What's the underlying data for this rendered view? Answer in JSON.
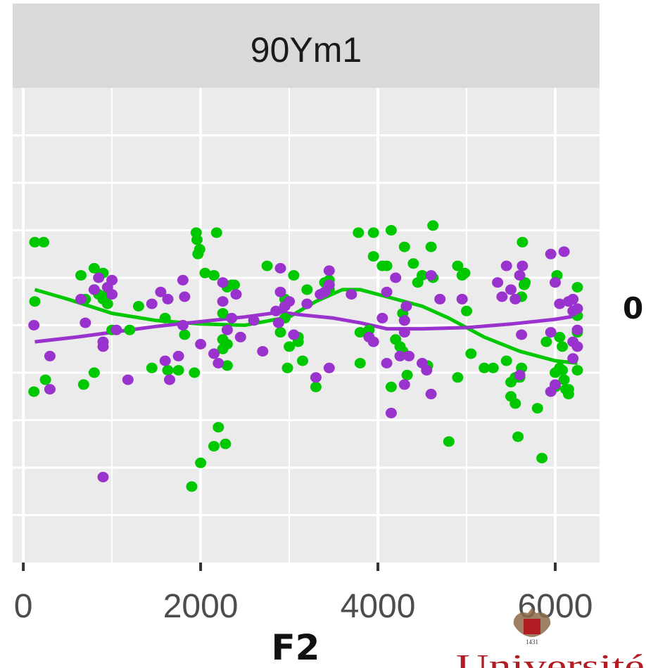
{
  "chart_data": {
    "type": "scatter",
    "panel_title": "90Ym1",
    "xlabel": "F2",
    "ylabel": "",
    "side_label": "0",
    "xlim": [
      -120,
      6500
    ],
    "ylim": [
      -10,
      10
    ],
    "x_ticks": [
      0,
      2000,
      4000,
      6000
    ],
    "x_tick_labels": [
      "0",
      "2000",
      "4000",
      "6000"
    ],
    "y_gridlines": [
      -8,
      -6,
      -4,
      -2,
      0,
      2,
      4,
      6,
      8
    ],
    "grid": true,
    "background": "#ebebeb",
    "strip_background": "#d9d9d9",
    "series": [
      {
        "color": "#00c800",
        "points": [
          [
            130,
            3.5
          ],
          [
            230,
            3.5
          ],
          [
            130,
            1
          ],
          [
            120,
            -2.8
          ],
          [
            250,
            -2.3
          ],
          [
            650,
            2.1
          ],
          [
            700,
            1.1
          ],
          [
            680,
            -2.5
          ],
          [
            800,
            2.4
          ],
          [
            800,
            1.5
          ],
          [
            850,
            1.3
          ],
          [
            900,
            2.2
          ],
          [
            900,
            1.1
          ],
          [
            950,
            1.3
          ],
          [
            950,
            0.9
          ],
          [
            800,
            -2
          ],
          [
            1000,
            -0.2
          ],
          [
            1200,
            -0.2
          ],
          [
            1300,
            0.8
          ],
          [
            1450,
            -1.8
          ],
          [
            1600,
            0.3
          ],
          [
            1630,
            -1.9
          ],
          [
            1750,
            -1.9
          ],
          [
            1820,
            -0.4
          ],
          [
            1930,
            -2
          ],
          [
            1950,
            3.9
          ],
          [
            1960,
            3.6
          ],
          [
            1970,
            3
          ],
          [
            1990,
            3.2
          ],
          [
            2000,
            -5.8
          ],
          [
            1900,
            -6.8
          ],
          [
            2050,
            2.2
          ],
          [
            2150,
            -5.1
          ],
          [
            2150,
            2.1
          ],
          [
            2200,
            -4.3
          ],
          [
            2250,
            -0.6
          ],
          [
            2250,
            -1
          ],
          [
            2300,
            -0.8
          ],
          [
            2300,
            -1.7
          ],
          [
            2280,
            -5
          ],
          [
            2180,
            3.9
          ],
          [
            2300,
            1.6
          ],
          [
            2350,
            1.7
          ],
          [
            2380,
            1.7
          ],
          [
            2250,
            0.5
          ],
          [
            2750,
            2.5
          ],
          [
            2900,
            -0.3
          ],
          [
            2950,
            0.3
          ],
          [
            2950,
            1.1
          ],
          [
            2980,
            -1.8
          ],
          [
            3000,
            -0.9
          ],
          [
            3050,
            2.1
          ],
          [
            3100,
            -0.5
          ],
          [
            3100,
            -0.7
          ],
          [
            3150,
            -1.5
          ],
          [
            3200,
            1.5
          ],
          [
            3300,
            -2.6
          ],
          [
            3400,
            1.8
          ],
          [
            3450,
            1.5
          ],
          [
            3450,
            1.9
          ],
          [
            3780,
            3.9
          ],
          [
            3800,
            -1.6
          ],
          [
            3800,
            -0.3
          ],
          [
            3900,
            -0.2
          ],
          [
            3950,
            3.9
          ],
          [
            3950,
            2.9
          ],
          [
            4050,
            2.5
          ],
          [
            4150,
            4
          ],
          [
            4100,
            2.5
          ],
          [
            4150,
            -2.6
          ],
          [
            4200,
            -0.6
          ],
          [
            4250,
            -0.9
          ],
          [
            4280,
            -1.1
          ],
          [
            4280,
            0.5
          ],
          [
            4300,
            3.3
          ],
          [
            4330,
            -2.1
          ],
          [
            4300,
            0.2
          ],
          [
            4400,
            2.6
          ],
          [
            4450,
            1.8
          ],
          [
            4500,
            2.1
          ],
          [
            4560,
            -1.7
          ],
          [
            4600,
            3.3
          ],
          [
            4620,
            2
          ],
          [
            4620,
            4.2
          ],
          [
            4900,
            -2.2
          ],
          [
            4900,
            2.5
          ],
          [
            4950,
            2.1
          ],
          [
            4980,
            2.2
          ],
          [
            5000,
            0.6
          ],
          [
            4800,
            -4.9
          ],
          [
            5050,
            -1.2
          ],
          [
            5200,
            -1.8
          ],
          [
            5300,
            -1.8
          ],
          [
            5450,
            -1.5
          ],
          [
            5500,
            -2.4
          ],
          [
            5500,
            -3
          ],
          [
            5550,
            -2.2
          ],
          [
            5550,
            -3.3
          ],
          [
            5580,
            -4.7
          ],
          [
            5600,
            -2.2
          ],
          [
            5620,
            -1.8
          ],
          [
            5620,
            1.2
          ],
          [
            5630,
            3.5
          ],
          [
            5650,
            1.7
          ],
          [
            5660,
            1.8
          ],
          [
            5800,
            -3.5
          ],
          [
            5850,
            -5.6
          ],
          [
            5900,
            -0.7
          ],
          [
            6000,
            -2
          ],
          [
            6000,
            -2.6
          ],
          [
            6020,
            2.1
          ],
          [
            6050,
            -0.5
          ],
          [
            6050,
            -1.8
          ],
          [
            6080,
            -0.9
          ],
          [
            6080,
            -1.9
          ],
          [
            6100,
            -2.3
          ],
          [
            6120,
            -2.7
          ],
          [
            6150,
            -2.9
          ],
          [
            6150,
            -2.7
          ],
          [
            6250,
            1.6
          ],
          [
            6250,
            -1.9
          ],
          [
            6250,
            -0.3
          ],
          [
            6250,
            0.4
          ]
        ]
      },
      {
        "color": "#9a32cd",
        "points": [
          [
            120,
            0
          ],
          [
            300,
            -1.3
          ],
          [
            300,
            -2.7
          ],
          [
            650,
            1.1
          ],
          [
            700,
            0.1
          ],
          [
            800,
            1.5
          ],
          [
            850,
            2
          ],
          [
            900,
            -0.7
          ],
          [
            900,
            -0.9
          ],
          [
            950,
            1.6
          ],
          [
            1000,
            1.3
          ],
          [
            1000,
            1.9
          ],
          [
            1050,
            -0.2
          ],
          [
            1180,
            -2.3
          ],
          [
            1450,
            0.9
          ],
          [
            1550,
            1.4
          ],
          [
            1600,
            -1.5
          ],
          [
            1630,
            1.1
          ],
          [
            1650,
            -2.3
          ],
          [
            1750,
            -1.3
          ],
          [
            1800,
            1.9
          ],
          [
            1820,
            1.2
          ],
          [
            1800,
            0
          ],
          [
            2000,
            -0.8
          ],
          [
            2150,
            -1.2
          ],
          [
            2200,
            -1.6
          ],
          [
            2250,
            1.8
          ],
          [
            2250,
            1
          ],
          [
            2300,
            -0.2
          ],
          [
            2350,
            0.3
          ],
          [
            2400,
            1.3
          ],
          [
            2450,
            -0.5
          ],
          [
            2600,
            0.2
          ],
          [
            2700,
            -1.1
          ],
          [
            2850,
            0.6
          ],
          [
            2880,
            0.1
          ],
          [
            2900,
            2.4
          ],
          [
            2900,
            1.4
          ],
          [
            2950,
            0.8
          ],
          [
            3000,
            1
          ],
          [
            3050,
            -0.4
          ],
          [
            3200,
            0.9
          ],
          [
            3300,
            -2.2
          ],
          [
            3350,
            1.3
          ],
          [
            3400,
            1.4
          ],
          [
            3450,
            2.3
          ],
          [
            3450,
            1.7
          ],
          [
            3450,
            -1.8
          ],
          [
            3700,
            1.3
          ],
          [
            3900,
            -0.5
          ],
          [
            3950,
            -0.7
          ],
          [
            4050,
            0.3
          ],
          [
            4100,
            1.4
          ],
          [
            4100,
            -1.6
          ],
          [
            4150,
            -3.7
          ],
          [
            4200,
            2
          ],
          [
            4250,
            -1.3
          ],
          [
            4300,
            -2.5
          ],
          [
            4300,
            0.2
          ],
          [
            4300,
            -0.3
          ],
          [
            4320,
            0.8
          ],
          [
            4350,
            -1.3
          ],
          [
            4500,
            -1.6
          ],
          [
            4550,
            -1.9
          ],
          [
            4600,
            2.1
          ],
          [
            4600,
            -2.9
          ],
          [
            4700,
            1.1
          ],
          [
            4950,
            1.1
          ],
          [
            5350,
            1.8
          ],
          [
            5400,
            1.2
          ],
          [
            5450,
            2.5
          ],
          [
            5500,
            1.5
          ],
          [
            5550,
            1.1
          ],
          [
            5600,
            2.1
          ],
          [
            5600,
            -2.1
          ],
          [
            5620,
            -0.4
          ],
          [
            5630,
            2.5
          ],
          [
            5950,
            3
          ],
          [
            6000,
            1.8
          ],
          [
            5950,
            -0.3
          ],
          [
            5950,
            -2.8
          ],
          [
            6000,
            -2.5
          ],
          [
            6050,
            0.9
          ],
          [
            6100,
            3.1
          ],
          [
            6150,
            1
          ],
          [
            6200,
            1.1
          ],
          [
            6200,
            0.6
          ],
          [
            6200,
            -0.7
          ],
          [
            6200,
            -1.4
          ],
          [
            6250,
            -0.9
          ],
          [
            6250,
            0.7
          ],
          [
            6250,
            -0.2
          ],
          [
            900,
            -6.4
          ]
        ]
      }
    ],
    "trend_lines": [
      {
        "color": "#00c800",
        "x": [
          130,
          500,
          1000,
          1500,
          2000,
          2500,
          3000,
          3300,
          3600,
          3800,
          4100,
          4500,
          4800,
          5200,
          5600,
          6000,
          6250
        ],
        "y": [
          1.5,
          1.1,
          0.5,
          0.2,
          0.05,
          0,
          0.35,
          1,
          1.5,
          1.5,
          1.2,
          0.8,
          0.3,
          -0.5,
          -1.1,
          -1.5,
          -1.6
        ]
      },
      {
        "color": "#9a32cd",
        "x": [
          130,
          600,
          1000,
          1500,
          2000,
          2500,
          2900,
          3100,
          3500,
          3800,
          4100,
          4500,
          5000,
          5500,
          6000,
          6250
        ],
        "y": [
          -0.7,
          -0.5,
          -0.3,
          -0.05,
          0.15,
          0.35,
          0.55,
          0.45,
          0.3,
          0.1,
          -0.15,
          -0.15,
          -0.1,
          0.05,
          0.25,
          0.4
        ]
      }
    ],
    "logo": {
      "text": "Université",
      "year": "1431"
    }
  }
}
